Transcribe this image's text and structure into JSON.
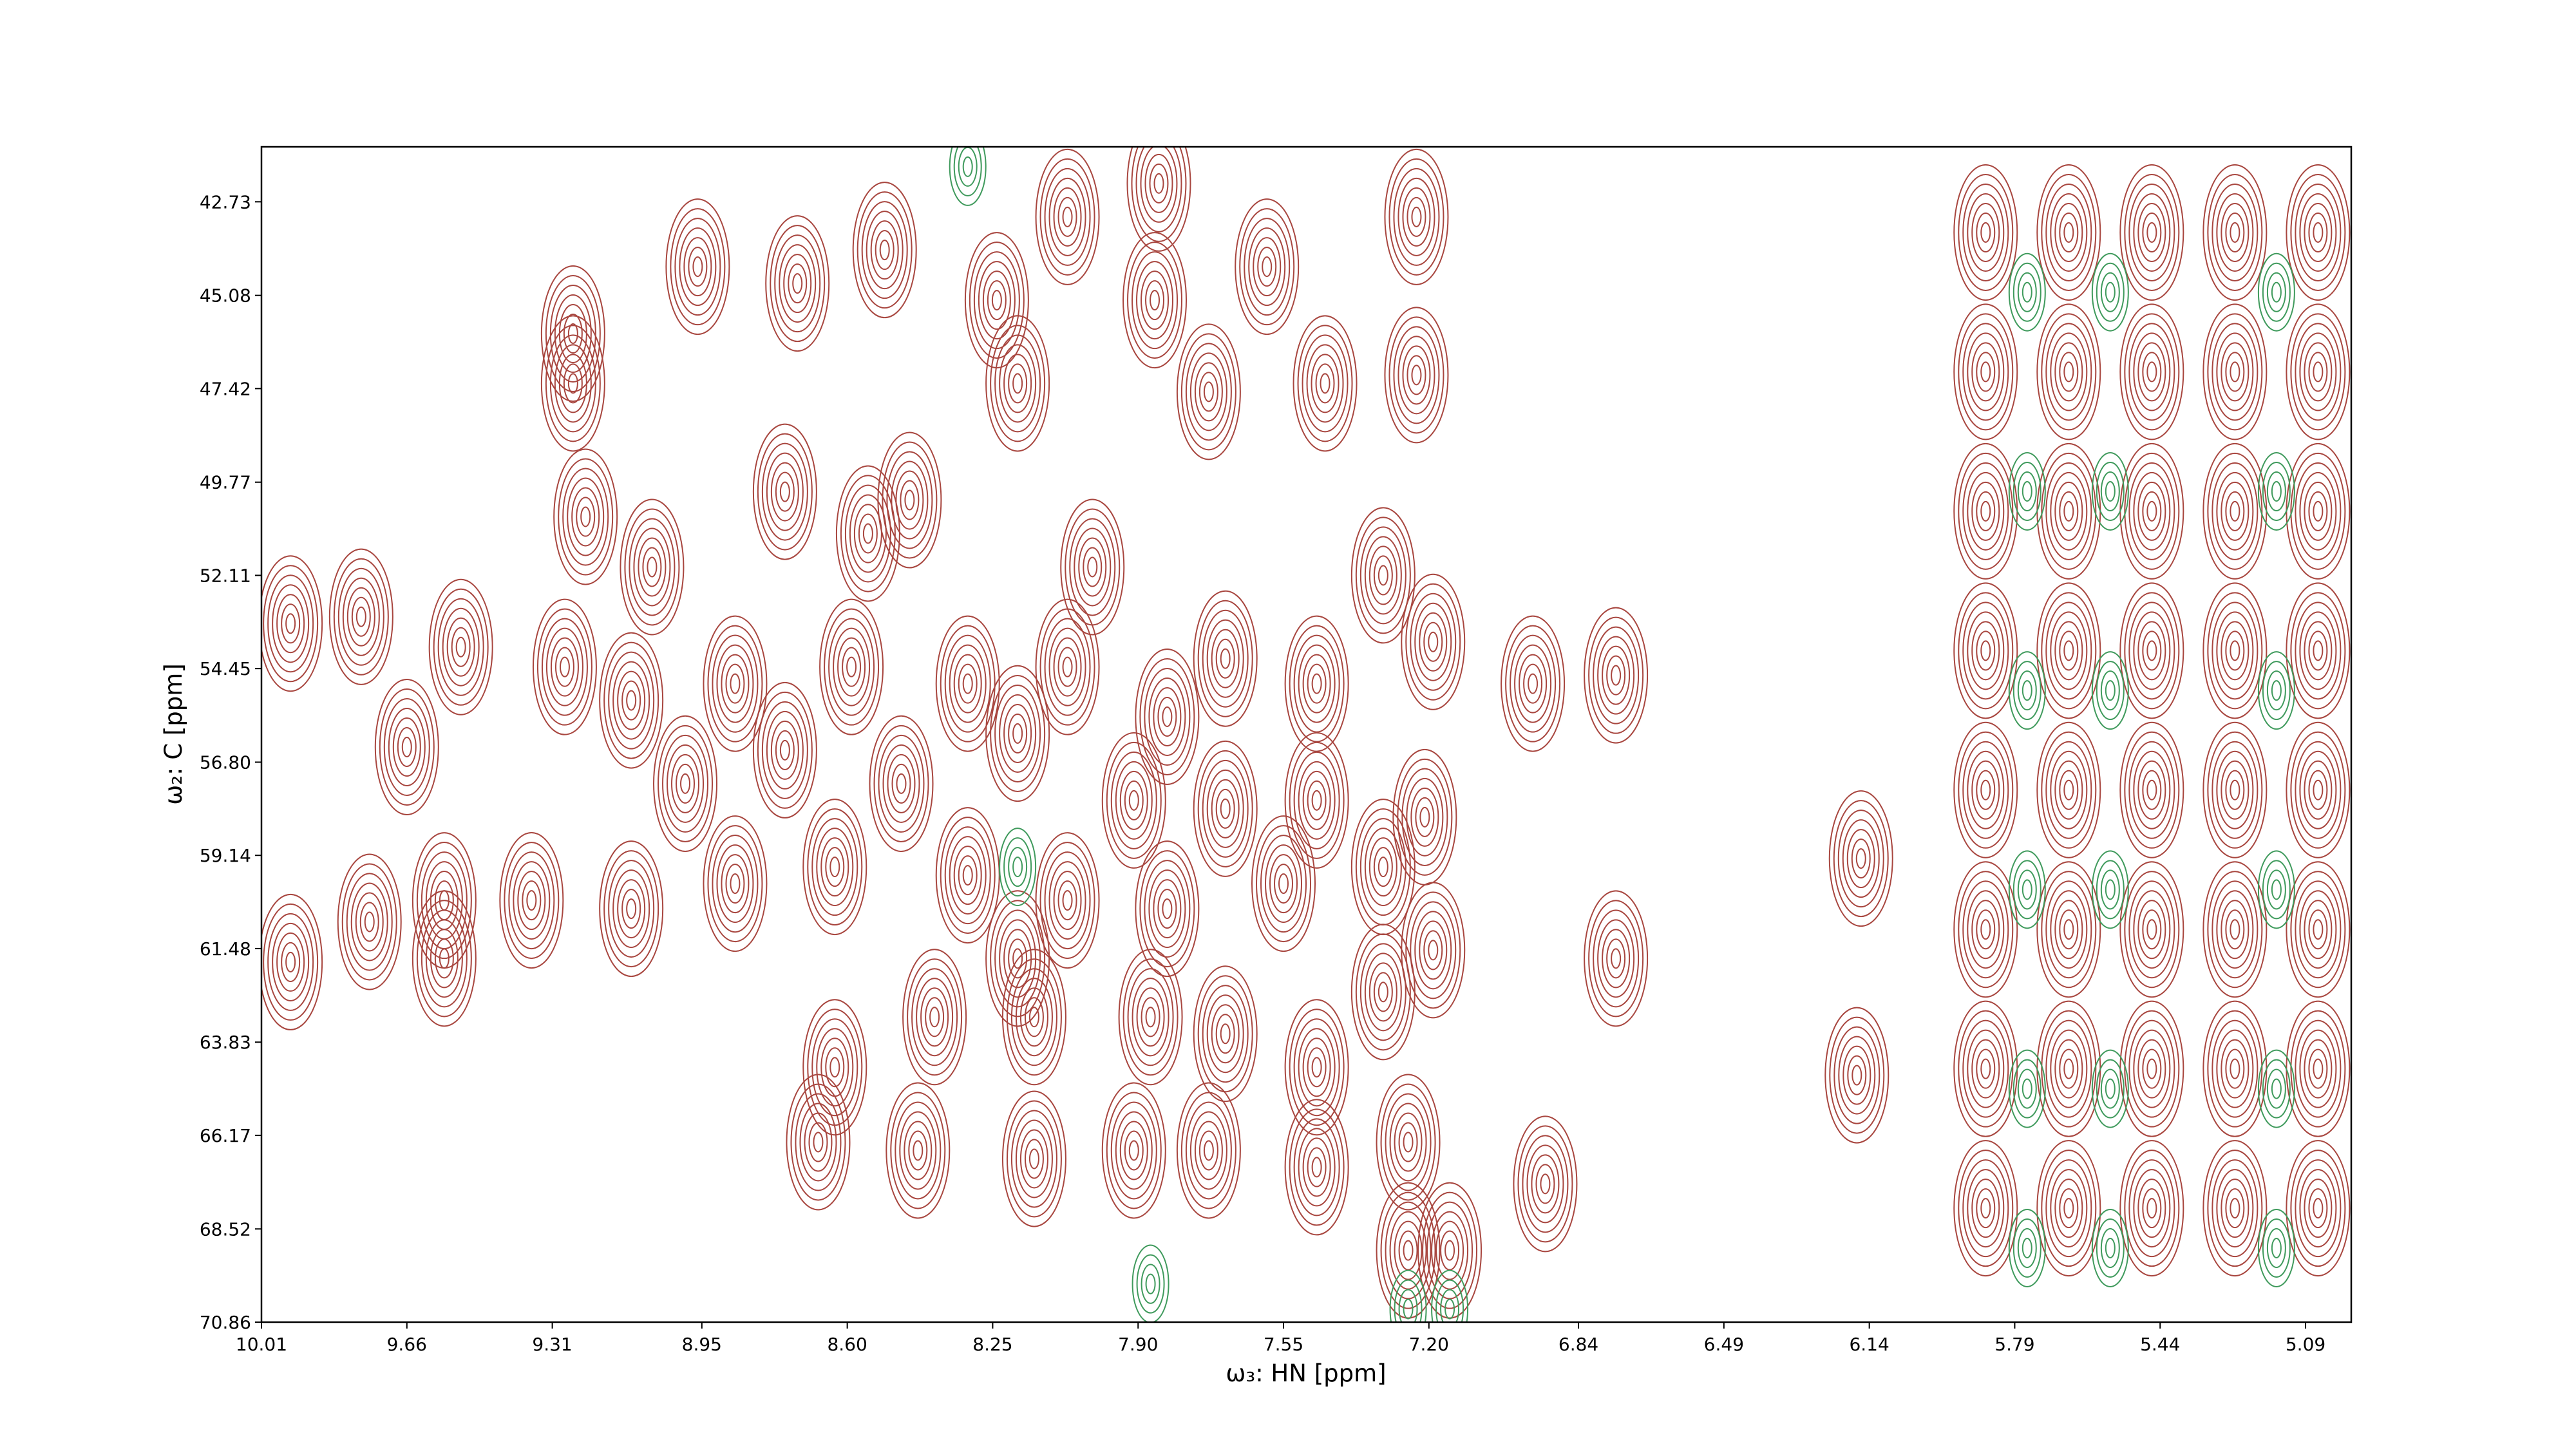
{
  "chart_data": {
    "type": "contour",
    "xlabel": "ω₃: HN [ppm]",
    "ylabel": "ω₂: C [ppm]",
    "xlim": [
      10.01,
      4.98
    ],
    "ylim": [
      70.86,
      41.35
    ],
    "xticks": [
      10.01,
      9.66,
      9.31,
      8.95,
      {
        "value": 8.6,
        "label": "8.60"
      },
      8.25,
      {
        "value": 7.9,
        "label": "7.90"
      },
      7.55,
      {
        "value": 7.2,
        "label": "7.20"
      },
      6.84,
      6.49,
      6.14,
      5.79,
      5.44,
      5.09
    ],
    "yticks": [
      42.73,
      45.08,
      47.42,
      49.77,
      52.11,
      54.45,
      {
        "value": 56.8,
        "label": "56.80"
      },
      59.14,
      61.48,
      63.83,
      66.17,
      68.52,
      70.86
    ],
    "series": [
      {
        "color": "#a8463f",
        "x": [
          9.94,
          9.77,
          9.53,
          9.66,
          9.94,
          9.75,
          9.57,
          9.57,
          9.26,
          9.26,
          8.96,
          8.72,
          8.51,
          8.24,
          8.07,
          7.85,
          7.86,
          7.59,
          7.45,
          7.23,
          7.23,
          7.73,
          8.19,
          9.23,
          9.07,
          8.75,
          8.55,
          8.45,
          8.01,
          7.31,
          7.19,
          7.69,
          7.47,
          9.28,
          9.12,
          8.87,
          8.59,
          8.31,
          8.07,
          7.83,
          8.19,
          8.75,
          8.99,
          8.47,
          7.91,
          7.69,
          7.47,
          7.21,
          9.36,
          9.12,
          8.87,
          8.63,
          8.31,
          8.07,
          7.83,
          7.55,
          7.31,
          7.19,
          8.19,
          8.39,
          8.15,
          7.87,
          7.69,
          7.47,
          7.31,
          8.63,
          6.95,
          6.75,
          6.75,
          6.16,
          6.17,
          8.67,
          8.43,
          8.15,
          7.91,
          7.73,
          7.47,
          7.25,
          6.92,
          7.25,
          7.15,
          5.86,
          5.86,
          5.86,
          5.86,
          5.86,
          5.86,
          5.86,
          5.86,
          5.66,
          5.66,
          5.66,
          5.66,
          5.66,
          5.66,
          5.66,
          5.66,
          5.46,
          5.46,
          5.46,
          5.46,
          5.46,
          5.46,
          5.46,
          5.46,
          5.26,
          5.26,
          5.26,
          5.26,
          5.26,
          5.26,
          5.26,
          5.26,
          5.06,
          5.06,
          5.06,
          5.06,
          5.06,
          5.06,
          5.06,
          5.06
        ],
        "y": [
          53.32,
          53.15,
          53.91,
          56.42,
          61.82,
          60.81,
          61.73,
          60.27,
          46.04,
          47.29,
          44.36,
          44.78,
          43.94,
          45.2,
          43.11,
          42.27,
          45.2,
          44.36,
          47.29,
          43.11,
          47.08,
          47.5,
          47.29,
          50.64,
          51.9,
          50.01,
          51.06,
          50.22,
          51.9,
          52.11,
          53.78,
          54.2,
          54.83,
          54.41,
          55.25,
          54.83,
          54.41,
          54.83,
          54.41,
          55.66,
          56.08,
          56.5,
          57.34,
          57.34,
          57.76,
          57.97,
          57.76,
          58.18,
          60.27,
          60.48,
          59.85,
          59.43,
          59.64,
          60.27,
          60.48,
          59.85,
          59.43,
          61.52,
          61.73,
          63.2,
          63.2,
          63.2,
          63.62,
          64.46,
          62.57,
          64.46,
          54.83,
          54.62,
          61.73,
          59.22,
          64.66,
          66.34,
          66.55,
          66.76,
          66.55,
          66.55,
          66.97,
          66.34,
          67.39,
          69.06,
          69.06,
          43.5,
          47,
          50.5,
          54,
          57.5,
          61,
          64.5,
          68,
          43.5,
          47,
          50.5,
          54,
          57.5,
          61,
          64.5,
          68,
          43.5,
          47,
          50.5,
          54,
          57.5,
          61,
          64.5,
          68,
          43.5,
          47,
          50.5,
          54,
          57.5,
          61,
          64.5,
          68,
          43.5,
          47,
          50.5,
          54,
          57.5,
          61,
          64.5,
          68
        ]
      },
      {
        "color": "#3f9a5c",
        "x": [
          8.31,
          7.87,
          7.25,
          7.15,
          8.19,
          5.76,
          5.76,
          5.76,
          5.76,
          5.76,
          5.76,
          5.56,
          5.56,
          5.56,
          5.56,
          5.56,
          5.56,
          5.16,
          5.16,
          5.16,
          5.16,
          5.16,
          5.16
        ],
        "y": [
          41.85,
          69.9,
          70.53,
          70.53,
          59.43,
          45,
          50,
          55,
          60,
          65,
          69,
          45,
          50,
          55,
          60,
          65,
          69,
          45,
          50,
          55,
          60,
          65,
          69
        ]
      }
    ]
  }
}
